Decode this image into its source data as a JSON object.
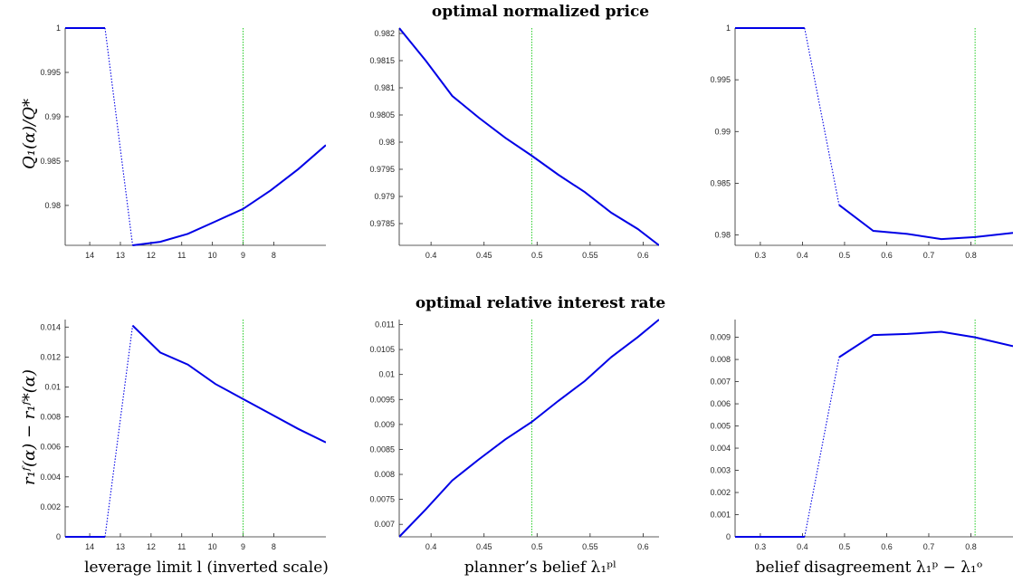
{
  "row_titles": [
    "optimal normalized price",
    "optimal relative interest rate"
  ],
  "column_xlabels": [
    "leverage limit l (inverted scale)",
    "planner’s belief λ₁ᵖˡ",
    "belief disagreement λ₁ᵖ − λ₁ᵒ"
  ],
  "row_ylabels": [
    "Q₁(α)/Q*",
    "r₁ᶠ(α) − r₁ᶠ*(α)"
  ],
  "colors": {
    "line": "#0000e6",
    "vline": "#22cc22",
    "axis": "#262626"
  },
  "chart_data": [
    {
      "type": "line",
      "row": 0,
      "col": 0,
      "title": "",
      "xlabel": "",
      "ylabel": "Q₁(α)/Q*",
      "x_reversed": true,
      "xlim": [
        6.3,
        14.8
      ],
      "ylim": [
        0.9755,
        1.0
      ],
      "xticks": [
        14,
        13,
        12,
        11,
        10,
        9,
        8
      ],
      "xticklabels": [
        "14",
        "13",
        "12",
        "11",
        "10",
        "9",
        "8"
      ],
      "yticks": [
        0.98,
        0.985,
        0.99,
        0.995,
        1.0
      ],
      "yticklabels": [
        "0.98",
        "0.985",
        "0.99",
        "0.995",
        "1"
      ],
      "series": [
        {
          "style": "solid",
          "x": [
            14.8,
            13.5
          ],
          "y": [
            1.0,
            1.0
          ]
        },
        {
          "style": "dotted",
          "x": [
            13.5,
            12.6
          ],
          "y": [
            1.0,
            0.9755
          ]
        },
        {
          "style": "solid",
          "x": [
            12.6,
            11.7,
            10.8,
            9.9,
            9.0,
            8.1,
            7.2,
            6.3
          ],
          "y": [
            0.9755,
            0.9759,
            0.9768,
            0.9782,
            0.9796,
            0.9817,
            0.9841,
            0.9868
          ]
        }
      ],
      "vline": 9.0
    },
    {
      "type": "line",
      "row": 0,
      "col": 1,
      "title": "",
      "xlabel": "",
      "ylabel": "",
      "x_reversed": false,
      "xlim": [
        0.37,
        0.615
      ],
      "ylim": [
        0.9781,
        0.9821
      ],
      "xticks": [
        0.4,
        0.45,
        0.5,
        0.55,
        0.6
      ],
      "xticklabels": [
        "0.4",
        "0.45",
        "0.5",
        "0.55",
        "0.6"
      ],
      "yticks": [
        0.9785,
        0.979,
        0.9795,
        0.98,
        0.9805,
        0.981,
        0.9815,
        0.982
      ],
      "yticklabels": [
        "0.9785",
        "0.979",
        "0.9795",
        "0.98",
        "0.9805",
        "0.981",
        "0.9815",
        "0.982"
      ],
      "series": [
        {
          "style": "solid",
          "x": [
            0.37,
            0.395,
            0.42,
            0.445,
            0.47,
            0.495,
            0.52,
            0.545,
            0.57,
            0.595,
            0.615
          ],
          "y": [
            0.9821,
            0.9815,
            0.98085,
            0.98045,
            0.98008,
            0.97975,
            0.9794,
            0.97908,
            0.9787,
            0.9784,
            0.9781
          ]
        }
      ],
      "vline": 0.495
    },
    {
      "type": "line",
      "row": 0,
      "col": 2,
      "title": "",
      "xlabel": "",
      "ylabel": "",
      "x_reversed": false,
      "xlim": [
        0.24,
        0.9
      ],
      "ylim": [
        0.979,
        1.0
      ],
      "xticks": [
        0.3,
        0.4,
        0.5,
        0.6,
        0.7,
        0.8
      ],
      "xticklabels": [
        "0.3",
        "0.4",
        "0.5",
        "0.6",
        "0.7",
        "0.8"
      ],
      "yticks": [
        0.98,
        0.985,
        0.99,
        0.995,
        1.0
      ],
      "yticklabels": [
        "0.98",
        "0.985",
        "0.99",
        "0.995",
        "1"
      ],
      "series": [
        {
          "style": "solid",
          "x": [
            0.24,
            0.405
          ],
          "y": [
            1.0,
            1.0
          ]
        },
        {
          "style": "dotted",
          "x": [
            0.405,
            0.487
          ],
          "y": [
            1.0,
            0.9829
          ]
        },
        {
          "style": "solid",
          "x": [
            0.487,
            0.568,
            0.649,
            0.73,
            0.81,
            0.9
          ],
          "y": [
            0.9829,
            0.9804,
            0.9801,
            0.9796,
            0.9798,
            0.9802
          ]
        }
      ],
      "vline": 0.81
    },
    {
      "type": "line",
      "row": 1,
      "col": 0,
      "title": "",
      "xlabel": "leverage limit l (inverted scale)",
      "ylabel": "r₁ᶠ(α) − r₁ᶠ*(α)",
      "x_reversed": true,
      "xlim": [
        6.3,
        14.8
      ],
      "ylim": [
        0,
        0.0145
      ],
      "xticks": [
        14,
        13,
        12,
        11,
        10,
        9,
        8
      ],
      "xticklabels": [
        "14",
        "13",
        "12",
        "11",
        "10",
        "9",
        "8"
      ],
      "yticks": [
        0,
        0.002,
        0.004,
        0.006,
        0.008,
        0.01,
        0.012,
        0.014
      ],
      "yticklabels": [
        "0",
        "0.002",
        "0.004",
        "0.006",
        "0.008",
        "0.01",
        "0.012",
        "0.014"
      ],
      "series": [
        {
          "style": "solid",
          "x": [
            14.8,
            13.5
          ],
          "y": [
            0,
            0
          ]
        },
        {
          "style": "dotted",
          "x": [
            13.5,
            12.6
          ],
          "y": [
            0,
            0.0141
          ]
        },
        {
          "style": "solid",
          "x": [
            12.6,
            11.7,
            10.8,
            9.9,
            9.0,
            8.1,
            7.2,
            6.3
          ],
          "y": [
            0.0141,
            0.0123,
            0.0115,
            0.0102,
            0.0092,
            0.0082,
            0.0072,
            0.0063
          ]
        }
      ],
      "vline": 9.0
    },
    {
      "type": "line",
      "row": 1,
      "col": 1,
      "title": "",
      "xlabel": "planner’s belief λ₁ᵖˡ",
      "ylabel": "",
      "x_reversed": false,
      "xlim": [
        0.37,
        0.615
      ],
      "ylim": [
        0.00675,
        0.0111
      ],
      "xticks": [
        0.4,
        0.45,
        0.5,
        0.55,
        0.6
      ],
      "xticklabels": [
        "0.4",
        "0.45",
        "0.5",
        "0.55",
        "0.6"
      ],
      "yticks": [
        0.007,
        0.0075,
        0.008,
        0.0085,
        0.009,
        0.0095,
        0.01,
        0.0105,
        0.011
      ],
      "yticklabels": [
        "0.007",
        "0.0075",
        "0.008",
        "0.0085",
        "0.009",
        "0.0095",
        "0.01",
        "0.0105",
        "0.011"
      ],
      "series": [
        {
          "style": "solid",
          "x": [
            0.37,
            0.395,
            0.42,
            0.445,
            0.47,
            0.495,
            0.52,
            0.545,
            0.57,
            0.595,
            0.615
          ],
          "y": [
            0.00675,
            0.0073,
            0.00788,
            0.0083,
            0.0087,
            0.00905,
            0.00947,
            0.00987,
            0.01035,
            0.01075,
            0.0111
          ]
        }
      ],
      "vline": 0.495
    },
    {
      "type": "line",
      "row": 1,
      "col": 2,
      "title": "",
      "xlabel": "belief disagreement λ₁ᵖ − λ₁ᵒ",
      "ylabel": "",
      "x_reversed": false,
      "xlim": [
        0.24,
        0.9
      ],
      "ylim": [
        0,
        0.0098
      ],
      "xticks": [
        0.3,
        0.4,
        0.5,
        0.6,
        0.7,
        0.8
      ],
      "xticklabels": [
        "0.3",
        "0.4",
        "0.5",
        "0.6",
        "0.7",
        "0.8"
      ],
      "yticks": [
        0,
        0.001,
        0.002,
        0.003,
        0.004,
        0.005,
        0.006,
        0.007,
        0.008,
        0.009
      ],
      "yticklabels": [
        "0",
        "0.001",
        "0.002",
        "0.003",
        "0.004",
        "0.005",
        "0.006",
        "0.007",
        "0.008",
        "0.009"
      ],
      "series": [
        {
          "style": "solid",
          "x": [
            0.24,
            0.405
          ],
          "y": [
            0,
            0
          ]
        },
        {
          "style": "dotted",
          "x": [
            0.405,
            0.487
          ],
          "y": [
            0,
            0.0081
          ]
        },
        {
          "style": "solid",
          "x": [
            0.487,
            0.568,
            0.649,
            0.73,
            0.81,
            0.9
          ],
          "y": [
            0.0081,
            0.0091,
            0.00915,
            0.00925,
            0.009,
            0.0086
          ]
        }
      ],
      "vline": 0.81
    }
  ]
}
